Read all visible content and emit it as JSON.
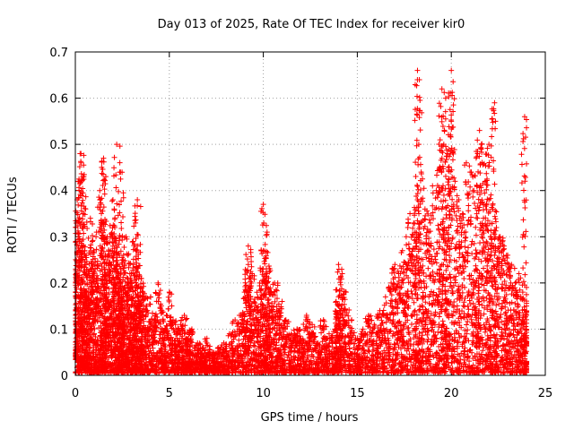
{
  "chart_data": {
    "type": "scatter",
    "title": "Day 013 of 2025, Rate Of TEC Index for receiver kir0",
    "xlabel": "GPS time / hours",
    "ylabel": "ROTI / TECUs",
    "xlim": [
      0,
      25
    ],
    "ylim": [
      0,
      0.7
    ],
    "xticks": [
      "0",
      "5",
      "10",
      "15",
      "20",
      "25"
    ],
    "yticks": [
      "0",
      "0.1",
      "0.2",
      "0.3",
      "0.4",
      "0.5",
      "0.6",
      "0.7"
    ],
    "grid": true,
    "marker": "+",
    "color": "#ff0000",
    "series": [
      {
        "x": [
          0.05,
          0.1,
          0.15,
          0.2,
          0.3,
          0.4,
          0.5,
          0.6,
          0.7,
          0.8,
          0.9,
          1.0,
          1.1,
          1.2,
          1.3,
          1.4,
          1.5,
          1.6,
          1.7,
          1.8,
          1.9,
          2.0,
          2.1,
          2.2,
          2.3,
          2.4,
          2.5,
          2.6,
          2.7,
          2.8,
          2.9,
          3.0,
          3.1,
          3.2,
          3.3,
          3.4,
          3.5,
          3.6,
          3.8,
          4.0,
          4.2,
          4.4,
          4.6,
          4.8,
          5.0,
          5.2,
          5.4,
          5.6,
          5.8,
          6.0,
          6.2,
          6.5,
          6.8,
          7.0,
          7.3,
          7.6,
          7.9,
          8.2,
          8.5,
          8.8,
          9.0,
          9.2,
          9.4,
          9.6,
          9.8,
          10.0,
          10.2,
          10.4,
          10.6,
          10.8,
          11.0,
          11.2,
          11.5,
          11.8,
          12.0,
          12.3,
          12.6,
          12.9,
          13.2,
          13.5,
          13.8,
          14.0,
          14.2,
          14.4,
          14.7,
          15.0,
          15.3,
          15.6,
          15.9,
          16.2,
          16.5,
          16.8,
          17.0,
          17.2,
          17.4,
          17.6,
          17.8,
          18.0,
          18.2,
          18.4,
          18.6,
          18.8,
          19.0,
          19.2,
          19.4,
          19.6,
          19.8,
          20.0,
          20.2,
          20.4,
          20.6,
          20.8,
          21.0,
          21.2,
          21.4,
          21.6,
          21.8,
          22.0,
          22.2,
          22.4,
          22.6,
          22.8,
          23.0,
          23.2,
          23.4,
          23.6,
          23.8,
          24.0,
          0.3,
          0.45,
          1.5,
          2.2,
          2.4,
          3.3,
          9.2,
          10.0,
          10.2,
          14.0,
          18.2,
          18.3,
          19.5,
          19.7,
          20.0,
          21.5,
          22.0,
          22.3,
          23.9
        ],
        "y": [
          0.22,
          0.38,
          0.42,
          0.3,
          0.46,
          0.35,
          0.27,
          0.18,
          0.22,
          0.34,
          0.29,
          0.24,
          0.3,
          0.21,
          0.4,
          0.45,
          0.33,
          0.26,
          0.3,
          0.23,
          0.27,
          0.38,
          0.32,
          0.28,
          0.22,
          0.2,
          0.25,
          0.19,
          0.3,
          0.26,
          0.22,
          0.2,
          0.24,
          0.33,
          0.28,
          0.16,
          0.21,
          0.18,
          0.15,
          0.17,
          0.12,
          0.2,
          0.14,
          0.1,
          0.18,
          0.12,
          0.09,
          0.11,
          0.13,
          0.08,
          0.1,
          0.07,
          0.06,
          0.08,
          0.05,
          0.06,
          0.07,
          0.09,
          0.12,
          0.13,
          0.18,
          0.24,
          0.22,
          0.15,
          0.2,
          0.27,
          0.22,
          0.18,
          0.2,
          0.14,
          0.16,
          0.12,
          0.09,
          0.1,
          0.08,
          0.13,
          0.11,
          0.07,
          0.12,
          0.09,
          0.1,
          0.17,
          0.22,
          0.18,
          0.12,
          0.08,
          0.1,
          0.13,
          0.11,
          0.14,
          0.17,
          0.2,
          0.24,
          0.22,
          0.27,
          0.3,
          0.35,
          0.33,
          0.38,
          0.44,
          0.36,
          0.31,
          0.41,
          0.4,
          0.45,
          0.5,
          0.48,
          0.55,
          0.42,
          0.38,
          0.35,
          0.46,
          0.44,
          0.4,
          0.48,
          0.5,
          0.42,
          0.38,
          0.36,
          0.32,
          0.3,
          0.28,
          0.26,
          0.24,
          0.2,
          0.22,
          0.18,
          0.15,
          0.48,
          0.43,
          0.47,
          0.5,
          0.44,
          0.38,
          0.28,
          0.37,
          0.31,
          0.24,
          0.66,
          0.64,
          0.62,
          0.6,
          0.66,
          0.53,
          0.5,
          0.59,
          0.56
        ]
      }
    ]
  }
}
